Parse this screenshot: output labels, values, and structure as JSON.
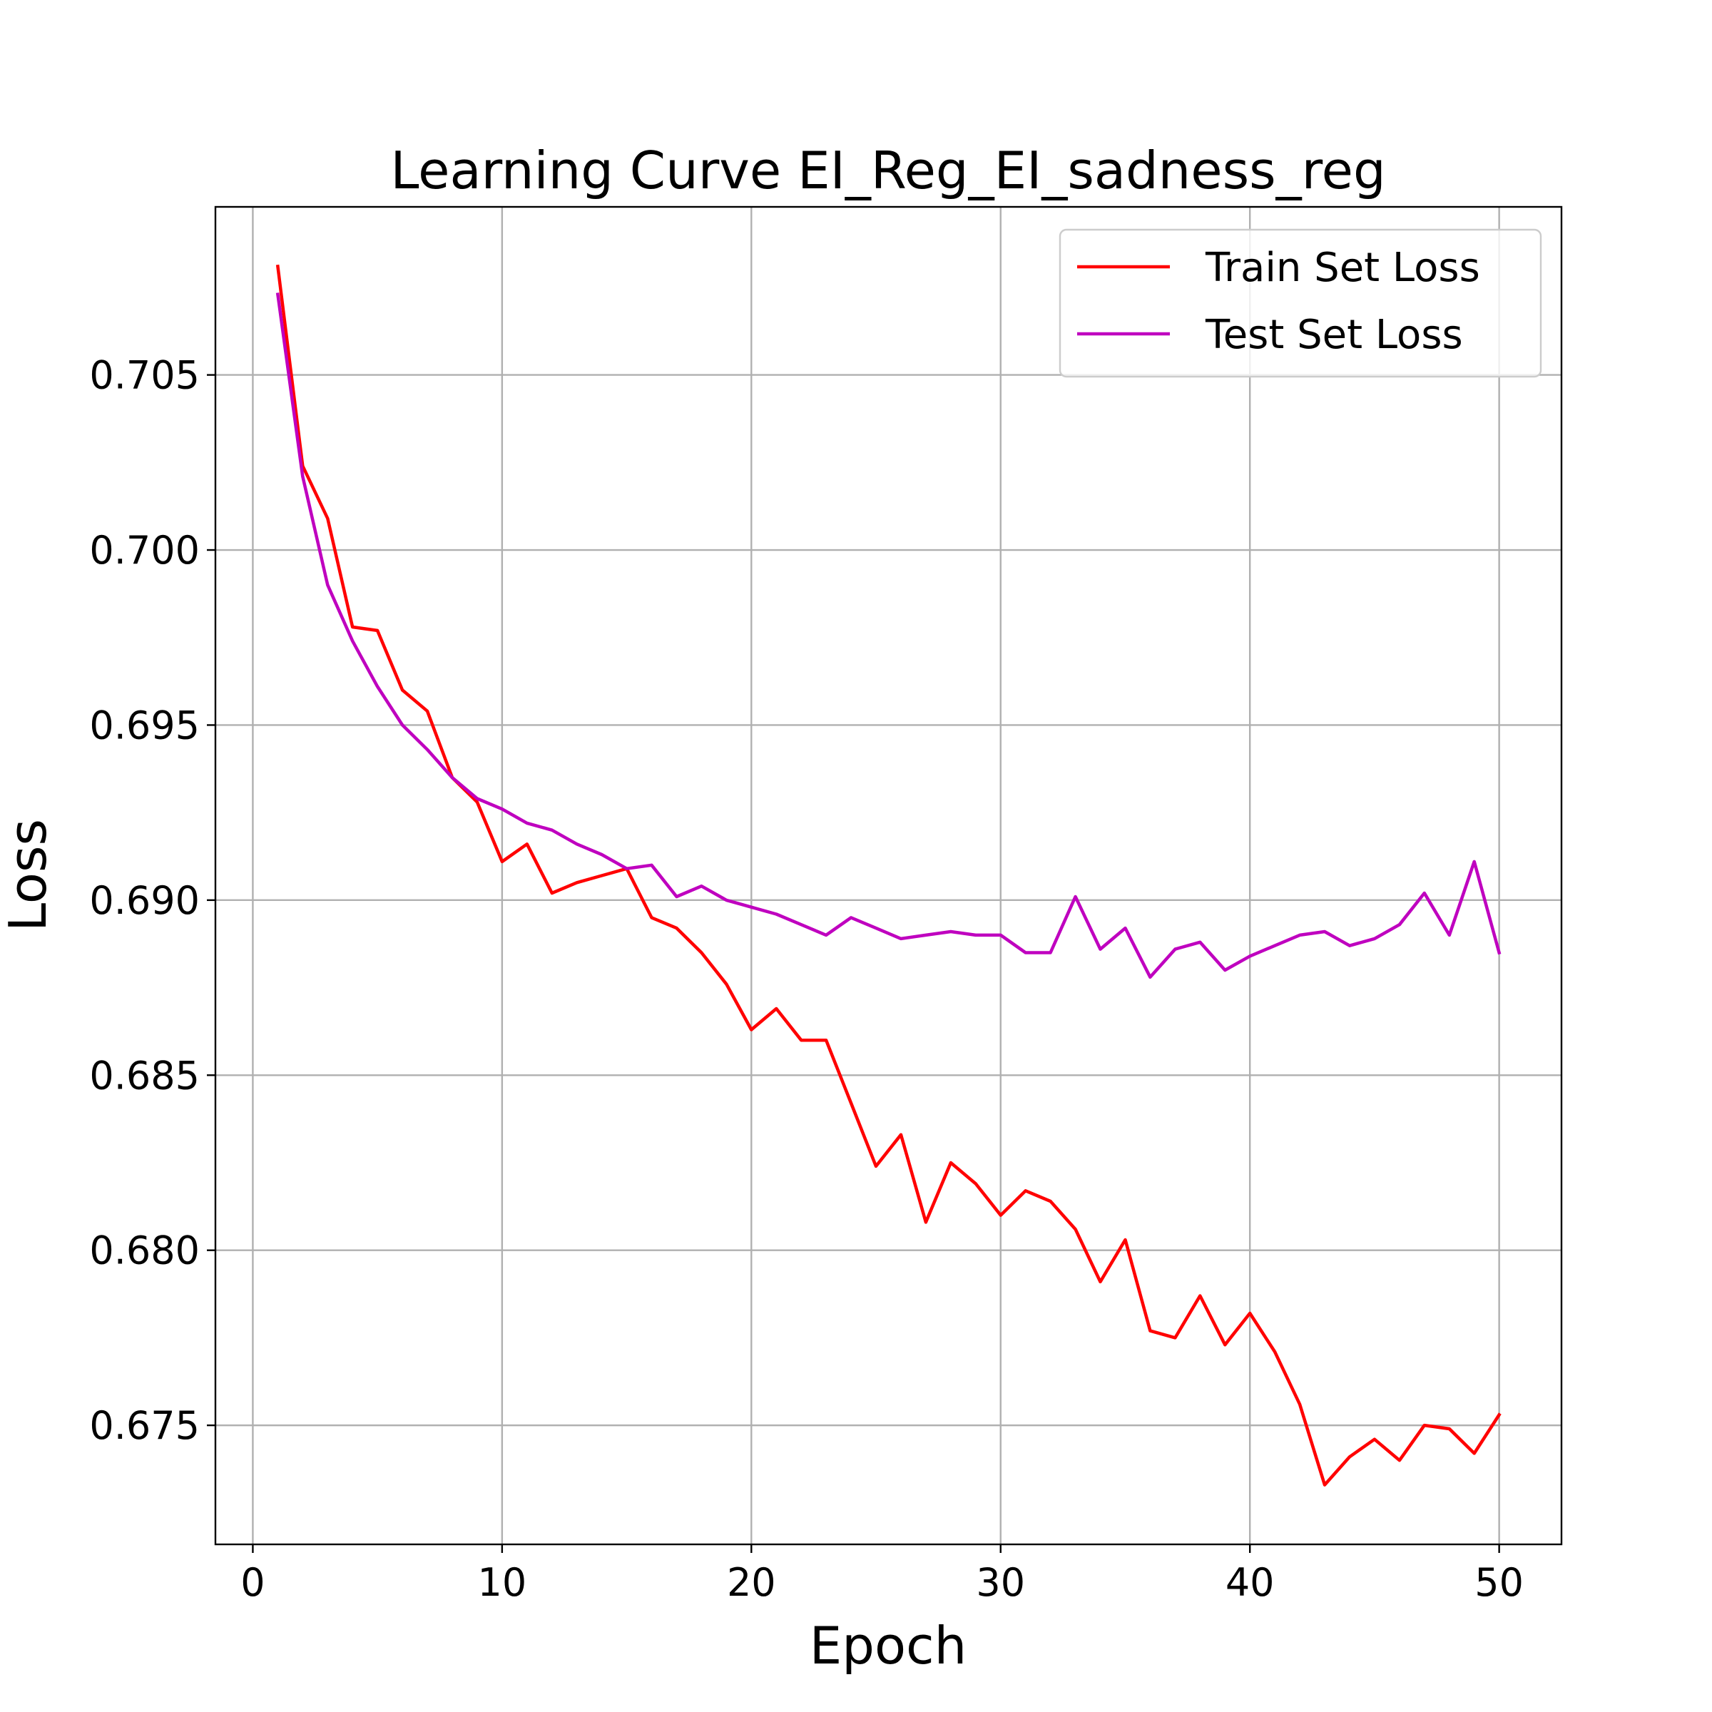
{
  "chart_data": {
    "type": "line",
    "title": "Learning Curve EI_Reg_EI_sadness_reg",
    "xlabel": "Epoch",
    "ylabel": "Loss",
    "xlim": [
      -1.5,
      52.5
    ],
    "ylim": [
      0.6716,
      0.7098
    ],
    "xticks": [
      0,
      10,
      20,
      30,
      40,
      50
    ],
    "yticks": [
      0.675,
      0.68,
      0.685,
      0.69,
      0.695,
      0.7,
      0.705
    ],
    "xtick_labels": [
      "0",
      "10",
      "20",
      "30",
      "40",
      "50"
    ],
    "ytick_labels": [
      "0.675",
      "0.680",
      "0.685",
      "0.690",
      "0.695",
      "0.700",
      "0.705"
    ],
    "grid": true,
    "legend_position": "top-right",
    "x": [
      1,
      2,
      3,
      4,
      5,
      6,
      7,
      8,
      9,
      10,
      11,
      12,
      13,
      14,
      15,
      16,
      17,
      18,
      19,
      20,
      21,
      22,
      23,
      24,
      25,
      26,
      27,
      28,
      29,
      30,
      31,
      32,
      33,
      34,
      35,
      36,
      37,
      38,
      39,
      40,
      41,
      42,
      43,
      44,
      45,
      46,
      47,
      48,
      49,
      50
    ],
    "series": [
      {
        "name": "Train Set Loss",
        "color": "#ff0000",
        "values": [
          0.7081,
          0.7024,
          0.7009,
          0.6978,
          0.6977,
          0.696,
          0.6954,
          0.6935,
          0.6928,
          0.6911,
          0.6916,
          0.6902,
          0.6905,
          0.6907,
          0.6909,
          0.6895,
          0.6892,
          0.6885,
          0.6876,
          0.6863,
          0.6869,
          0.686,
          0.686,
          0.6842,
          0.6824,
          0.6833,
          0.6808,
          0.6825,
          0.6819,
          0.681,
          0.6817,
          0.6814,
          0.6806,
          0.6791,
          0.6803,
          0.6777,
          0.6775,
          0.6787,
          0.6773,
          0.6782,
          0.6771,
          0.6756,
          0.6733,
          0.6741,
          0.6746,
          0.674,
          0.675,
          0.6749,
          0.6742,
          0.6753
        ]
      },
      {
        "name": "Test Set Loss",
        "color": "#bf00bf",
        "values": [
          0.7073,
          0.7021,
          0.699,
          0.6974,
          0.6961,
          0.695,
          0.6943,
          0.6935,
          0.6929,
          0.6926,
          0.6922,
          0.692,
          0.6916,
          0.6913,
          0.6909,
          0.691,
          0.6901,
          0.6904,
          0.69,
          0.6898,
          0.6896,
          0.6893,
          0.689,
          0.6895,
          0.6892,
          0.6889,
          0.689,
          0.6891,
          0.689,
          0.689,
          0.6885,
          0.6885,
          0.6901,
          0.6886,
          0.6892,
          0.6878,
          0.6886,
          0.6888,
          0.688,
          0.6884,
          0.6887,
          0.689,
          0.6891,
          0.6887,
          0.6889,
          0.6893,
          0.6902,
          0.689,
          0.6911,
          0.6885
        ]
      }
    ]
  }
}
